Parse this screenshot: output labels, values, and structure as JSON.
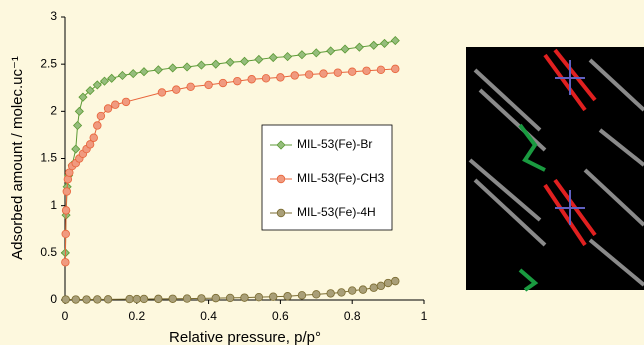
{
  "chart_data": {
    "type": "scatter-line",
    "x_label": "Relative pressure, p/p°",
    "y_label": "Adsorbed amount / molec.uc⁻¹",
    "xlim": [
      0,
      1
    ],
    "ylim": [
      0,
      3
    ],
    "xticks": [
      0,
      0.2,
      0.4,
      0.6,
      0.8,
      1
    ],
    "yticks": [
      0,
      0.5,
      1,
      1.5,
      2,
      2.5,
      3
    ],
    "legend": "center",
    "series": [
      {
        "name": "MIL-53(Fe)-Br",
        "color": "#5c9a35",
        "marker": "diamond",
        "x": [
          0.001,
          0.003,
          0.006,
          0.01,
          0.02,
          0.03,
          0.035,
          0.04,
          0.05,
          0.07,
          0.09,
          0.11,
          0.13,
          0.16,
          0.19,
          0.22,
          0.26,
          0.3,
          0.34,
          0.38,
          0.42,
          0.46,
          0.5,
          0.54,
          0.58,
          0.62,
          0.66,
          0.7,
          0.74,
          0.78,
          0.82,
          0.86,
          0.89,
          0.92
        ],
        "values": [
          0.5,
          0.9,
          1.2,
          1.32,
          1.43,
          1.6,
          1.85,
          2.0,
          2.15,
          2.22,
          2.28,
          2.32,
          2.35,
          2.38,
          2.4,
          2.42,
          2.44,
          2.46,
          2.47,
          2.49,
          2.5,
          2.52,
          2.53,
          2.55,
          2.57,
          2.58,
          2.6,
          2.62,
          2.64,
          2.66,
          2.68,
          2.7,
          2.72,
          2.75
        ]
      },
      {
        "name": "MIL-53(Fe)-CH3",
        "color": "#e8643a",
        "marker": "circle",
        "x": [
          0.001,
          0.002,
          0.003,
          0.005,
          0.008,
          0.012,
          0.02,
          0.03,
          0.04,
          0.05,
          0.06,
          0.07,
          0.08,
          0.09,
          0.1,
          0.12,
          0.14,
          0.17,
          0.27,
          0.31,
          0.35,
          0.4,
          0.44,
          0.48,
          0.52,
          0.56,
          0.6,
          0.64,
          0.68,
          0.72,
          0.76,
          0.8,
          0.84,
          0.88,
          0.92
        ],
        "values": [
          0.4,
          0.7,
          0.95,
          1.15,
          1.28,
          1.35,
          1.42,
          1.45,
          1.5,
          1.55,
          1.6,
          1.65,
          1.72,
          1.85,
          1.95,
          2.03,
          2.07,
          2.1,
          2.2,
          2.23,
          2.26,
          2.28,
          2.3,
          2.32,
          2.34,
          2.35,
          2.36,
          2.38,
          2.39,
          2.4,
          2.41,
          2.42,
          2.43,
          2.44,
          2.45
        ]
      },
      {
        "name": "MIL-53(Fe)-4H",
        "color": "#7a6b30",
        "marker": "circle",
        "x": [
          0.002,
          0.03,
          0.06,
          0.09,
          0.12,
          0.18,
          0.2,
          0.22,
          0.26,
          0.3,
          0.34,
          0.38,
          0.42,
          0.46,
          0.5,
          0.54,
          0.58,
          0.62,
          0.66,
          0.7,
          0.74,
          0.77,
          0.8,
          0.83,
          0.86,
          0.88,
          0.9,
          0.92
        ],
        "values": [
          0.005,
          0.005,
          0.005,
          0.006,
          0.007,
          0.01,
          0.01,
          0.011,
          0.012,
          0.013,
          0.015,
          0.017,
          0.02,
          0.022,
          0.025,
          0.03,
          0.035,
          0.04,
          0.05,
          0.06,
          0.07,
          0.08,
          0.1,
          0.11,
          0.13,
          0.15,
          0.18,
          0.2
        ]
      }
    ]
  }
}
